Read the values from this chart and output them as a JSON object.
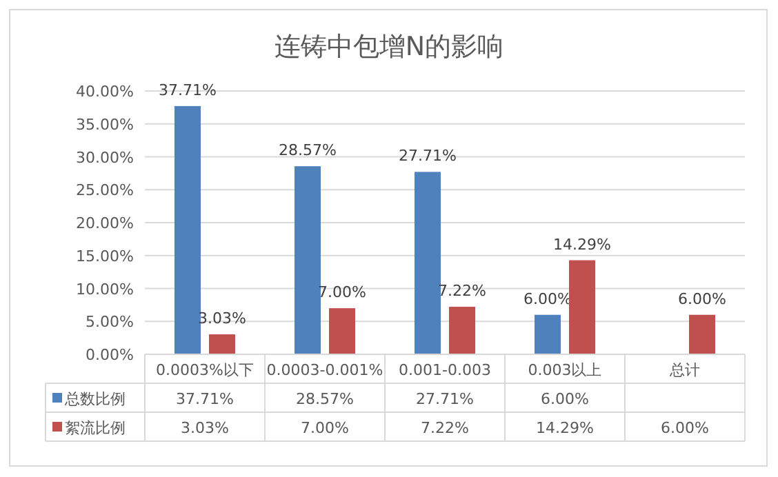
{
  "chart_data": {
    "type": "bar",
    "title": "连铸中包增N的影响",
    "categories": [
      "0.0003%以下",
      "0.0003-0.001%",
      "0.001-0.003",
      "0.003以上",
      "总计"
    ],
    "series": [
      {
        "name": "总数比例",
        "color": "#4f81bd",
        "values": [
          37.71,
          28.57,
          27.71,
          6.0,
          null
        ],
        "value_labels": [
          "37.71%",
          "28.57%",
          "27.71%",
          "6.00%",
          null
        ]
      },
      {
        "name": "絮流比例",
        "color": "#c0504d",
        "values": [
          3.03,
          7.0,
          7.22,
          14.29,
          6.0
        ],
        "value_labels": [
          "3.03%",
          "7.00%",
          "7.22%",
          "14.29%",
          "6.00%"
        ]
      }
    ],
    "ylim": [
      0,
      40
    ],
    "yticks": [
      {
        "value": 0,
        "label": "0.00%"
      },
      {
        "value": 5,
        "label": "5.00%"
      },
      {
        "value": 10,
        "label": "10.00%"
      },
      {
        "value": 15,
        "label": "15.00%"
      },
      {
        "value": 20,
        "label": "20.00%"
      },
      {
        "value": 25,
        "label": "25.00%"
      },
      {
        "value": 30,
        "label": "30.00%"
      },
      {
        "value": 35,
        "label": "35.00%"
      },
      {
        "value": 40,
        "label": "40.00%"
      }
    ],
    "grid": "y",
    "legend": "bottom"
  }
}
